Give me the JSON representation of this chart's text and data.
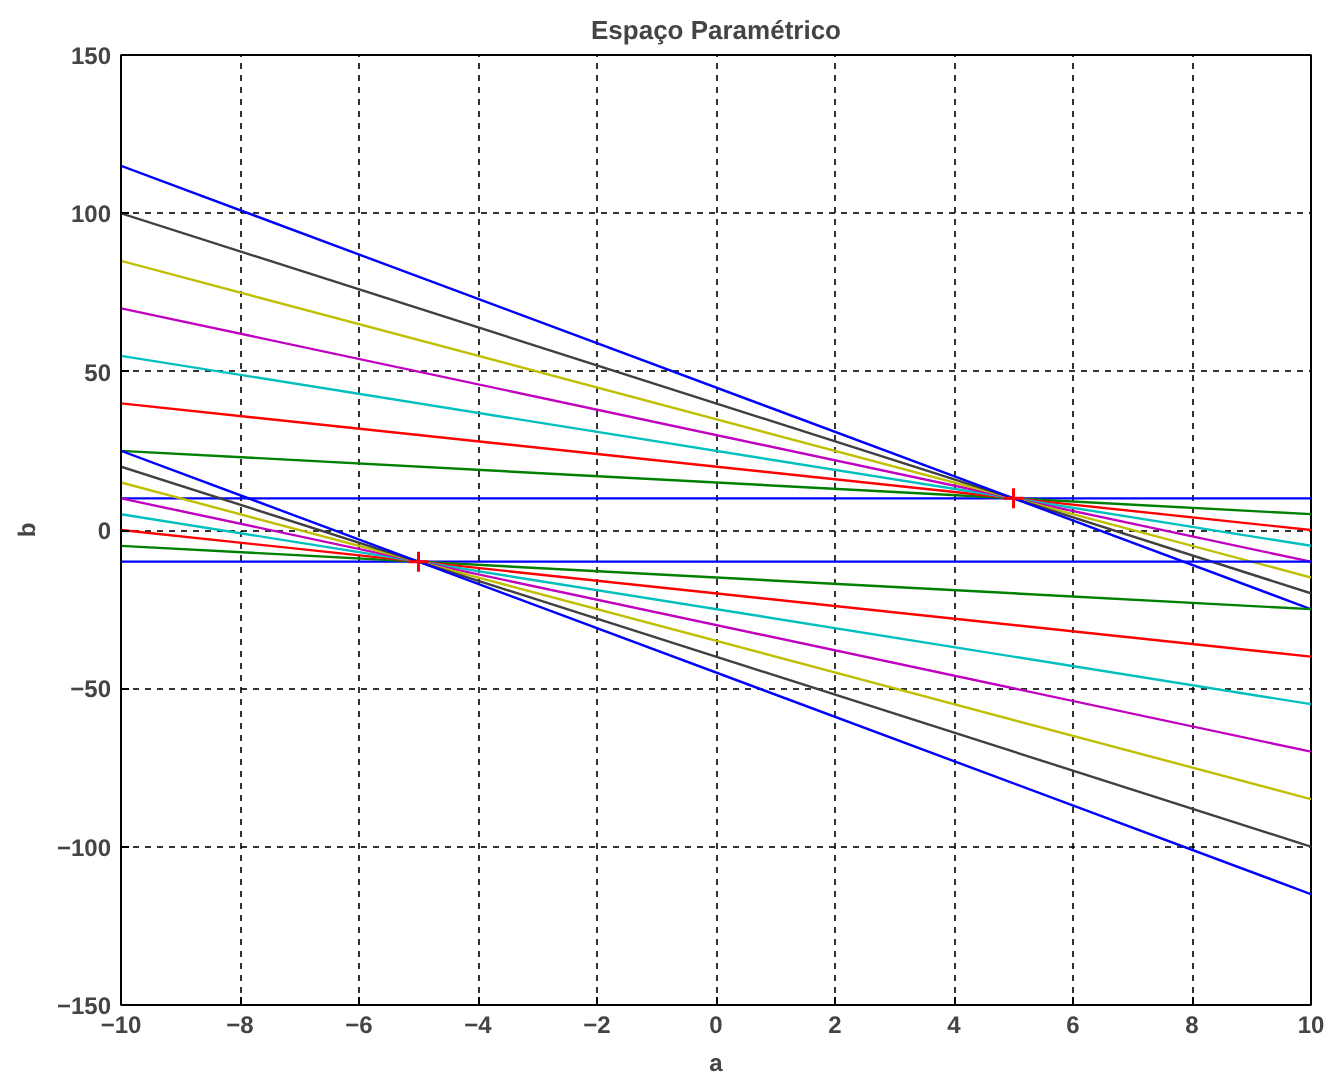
{
  "chart_data": {
    "type": "line",
    "title": "Espaço Paramétrico",
    "xlabel": "a",
    "ylabel": "b",
    "xlim": [
      -10,
      10
    ],
    "ylim": [
      -150,
      150
    ],
    "xticks": [
      -10,
      -8,
      -6,
      -4,
      -2,
      0,
      2,
      4,
      6,
      8,
      10
    ],
    "yticks": [
      -150,
      -100,
      -50,
      0,
      50,
      100,
      150
    ],
    "grid": true,
    "line_style": "solid",
    "series": [
      {
        "color": "#0000ff",
        "x": [
          -10,
          10
        ],
        "values": [
          10,
          10
        ]
      },
      {
        "color": "#008000",
        "x": [
          -10,
          10
        ],
        "values": [
          25,
          5
        ]
      },
      {
        "color": "#ff0000",
        "x": [
          -10,
          10
        ],
        "values": [
          40,
          0
        ]
      },
      {
        "color": "#00bfbf",
        "x": [
          -10,
          10
        ],
        "values": [
          55,
          -5
        ]
      },
      {
        "color": "#bf00bf",
        "x": [
          -10,
          10
        ],
        "values": [
          70,
          -10
        ]
      },
      {
        "color": "#bfbf00",
        "x": [
          -10,
          10
        ],
        "values": [
          85,
          -15
        ]
      },
      {
        "color": "#404040",
        "x": [
          -10,
          10
        ],
        "values": [
          100,
          -20
        ]
      },
      {
        "color": "#0000ff",
        "x": [
          -10,
          10
        ],
        "values": [
          115,
          -25
        ]
      },
      {
        "color": "#0000ff",
        "x": [
          -10,
          10
        ],
        "values": [
          -10,
          -10
        ]
      },
      {
        "color": "#008000",
        "x": [
          -10,
          10
        ],
        "values": [
          -5,
          -25
        ]
      },
      {
        "color": "#ff0000",
        "x": [
          -10,
          10
        ],
        "values": [
          0,
          -40
        ]
      },
      {
        "color": "#00bfbf",
        "x": [
          -10,
          10
        ],
        "values": [
          5,
          -55
        ]
      },
      {
        "color": "#bf00bf",
        "x": [
          -10,
          10
        ],
        "values": [
          10,
          -70
        ]
      },
      {
        "color": "#bfbf00",
        "x": [
          -10,
          10
        ],
        "values": [
          15,
          -85
        ]
      },
      {
        "color": "#404040",
        "x": [
          -10,
          10
        ],
        "values": [
          20,
          -100
        ]
      },
      {
        "color": "#0000ff",
        "x": [
          -10,
          10
        ],
        "values": [
          25,
          -115
        ]
      },
      {
        "type": "scatter",
        "marker": "cross",
        "color": "#ff0000",
        "x": [
          -5,
          5
        ],
        "values": [
          -10,
          10
        ]
      }
    ]
  }
}
